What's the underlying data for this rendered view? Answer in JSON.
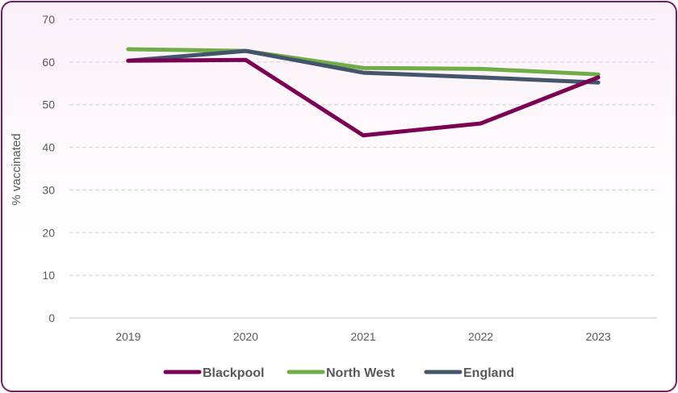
{
  "chart_data": {
    "type": "line",
    "title": "",
    "xlabel": "",
    "ylabel": "% vaccinated",
    "categories": [
      "2019",
      "2020",
      "2021",
      "2022",
      "2023"
    ],
    "ylim": [
      0,
      70
    ],
    "yticks": [
      0,
      10,
      20,
      30,
      40,
      50,
      60,
      70
    ],
    "grid": true,
    "legend_position": "bottom",
    "series": [
      {
        "name": "Blackpool",
        "color": "#7b0054",
        "values": [
          60.3,
          60.5,
          42.8,
          45.6,
          56.4
        ]
      },
      {
        "name": "North West",
        "color": "#70ad47",
        "values": [
          63.0,
          62.6,
          58.6,
          58.4,
          57.1
        ]
      },
      {
        "name": "England",
        "color": "#44546a",
        "values": [
          60.3,
          62.6,
          57.5,
          56.4,
          55.2
        ]
      }
    ]
  }
}
